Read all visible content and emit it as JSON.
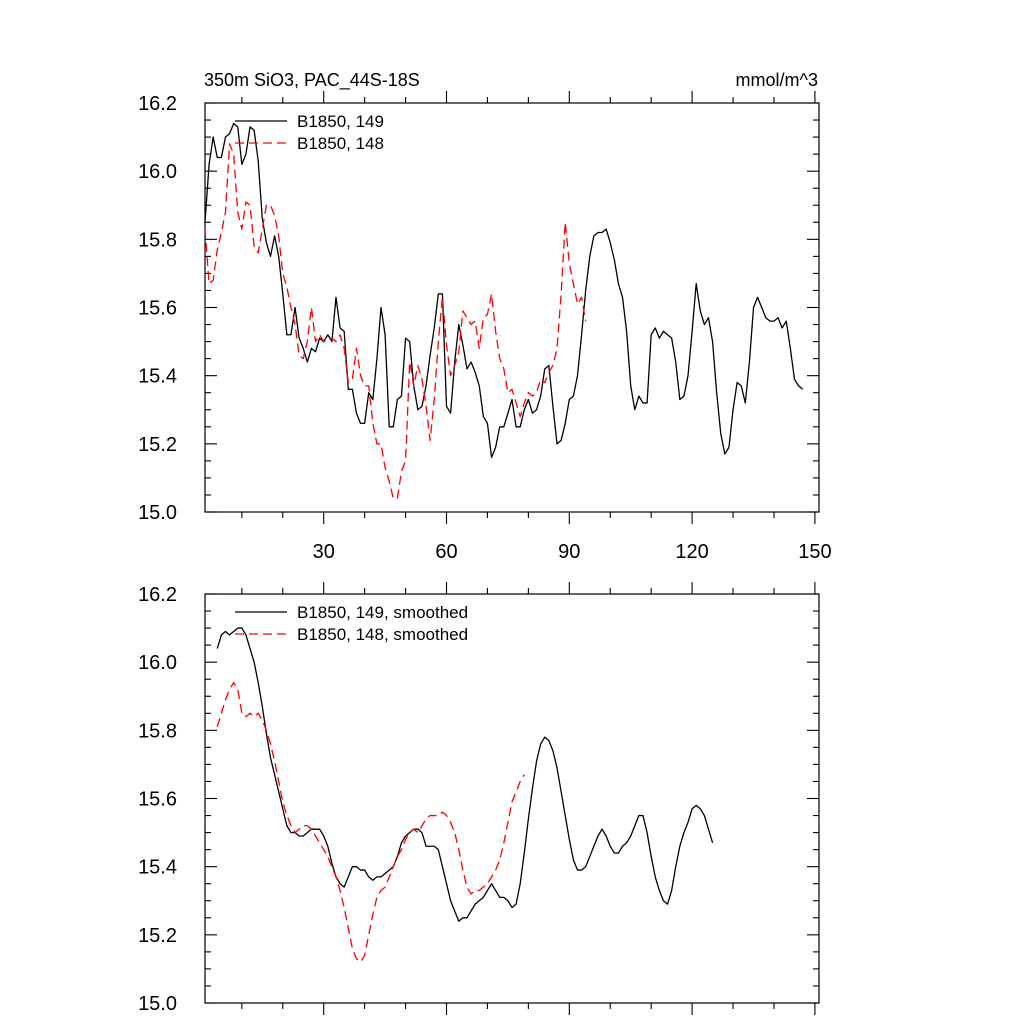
{
  "figure": {
    "title_left": "350m SiO3, PAC_44S-18S",
    "title_right": "mmol/m^3"
  },
  "chart_data": [
    {
      "type": "line",
      "xlim": [
        1,
        151
      ],
      "ylim": [
        15.0,
        16.2
      ],
      "x_ticks": [
        30,
        60,
        90,
        120,
        150
      ],
      "x_tick_labels": [
        "30",
        "60",
        "90",
        "120",
        "150"
      ],
      "y_ticks": [
        15.0,
        15.2,
        15.4,
        15.6,
        15.8,
        16.0,
        16.2
      ],
      "y_tick_labels": [
        "15.0",
        "15.2",
        "15.4",
        "15.6",
        "15.8",
        "16.0",
        "16.2"
      ],
      "legend_position": "top-left",
      "series": [
        {
          "name": "B1850, 149",
          "color": "#000000",
          "dash": "solid",
          "x_start": 1,
          "values": [
            15.85,
            16.02,
            16.1,
            16.04,
            16.04,
            16.1,
            16.11,
            16.14,
            16.13,
            16.02,
            16.05,
            16.13,
            16.12,
            16.03,
            15.86,
            15.79,
            15.75,
            15.81,
            15.75,
            15.64,
            15.52,
            15.52,
            15.6,
            15.51,
            15.48,
            15.44,
            15.48,
            15.47,
            15.51,
            15.5,
            15.52,
            15.5,
            15.63,
            15.54,
            15.53,
            15.36,
            15.36,
            15.29,
            15.26,
            15.26,
            15.35,
            15.33,
            15.45,
            15.6,
            15.52,
            15.25,
            15.25,
            15.33,
            15.34,
            15.51,
            15.5,
            15.37,
            15.3,
            15.31,
            15.37,
            15.46,
            15.54,
            15.64,
            15.64,
            15.31,
            15.29,
            15.44,
            15.55,
            15.49,
            15.42,
            15.44,
            15.41,
            15.37,
            15.28,
            15.26,
            15.16,
            15.19,
            15.25,
            15.25,
            15.29,
            15.33,
            15.25,
            15.25,
            15.3,
            15.33,
            15.29,
            15.3,
            15.34,
            15.42,
            15.43,
            15.31,
            15.2,
            15.21,
            15.26,
            15.33,
            15.34,
            15.4,
            15.52,
            15.65,
            15.75,
            15.81,
            15.82,
            15.82,
            15.83,
            15.79,
            15.74,
            15.67,
            15.63,
            15.53,
            15.37,
            15.3,
            15.34,
            15.32,
            15.32,
            15.52,
            15.54,
            15.51,
            15.53,
            15.52,
            15.51,
            15.44,
            15.33,
            15.34,
            15.4,
            15.53,
            15.67,
            15.59,
            15.55,
            15.57,
            15.5,
            15.35,
            15.23,
            15.17,
            15.19,
            15.3,
            15.38,
            15.37,
            15.32,
            15.44,
            15.6,
            15.63,
            15.6,
            15.57,
            15.56,
            15.56,
            15.57,
            15.54,
            15.56,
            15.48,
            15.39,
            15.37,
            15.36
          ]
        },
        {
          "name": "B1850, 148",
          "color": "#ff0000",
          "dash": "dashed",
          "x_start": 1,
          "values": [
            15.83,
            15.67,
            15.68,
            15.77,
            15.82,
            15.88,
            16.08,
            16.05,
            15.88,
            15.83,
            15.91,
            15.9,
            15.78,
            15.76,
            15.83,
            15.9,
            15.9,
            15.87,
            15.81,
            15.7,
            15.66,
            15.6,
            15.55,
            15.46,
            15.45,
            15.5,
            15.6,
            15.5,
            15.52,
            15.5,
            15.5,
            15.51,
            15.5,
            15.52,
            15.48,
            15.38,
            15.39,
            15.48,
            15.4,
            15.37,
            15.37,
            15.26,
            15.2,
            15.2,
            15.13,
            15.09,
            15.04,
            15.04,
            15.12,
            15.15,
            15.44,
            15.37,
            15.43,
            15.39,
            15.31,
            15.21,
            15.33,
            15.5,
            15.63,
            15.49,
            15.4,
            15.43,
            15.47,
            15.59,
            15.57,
            15.55,
            15.56,
            15.48,
            15.57,
            15.58,
            15.64,
            15.53,
            15.45,
            15.42,
            15.35,
            15.36,
            15.32,
            15.28,
            15.32,
            15.35,
            15.34,
            15.35,
            15.39,
            15.38,
            15.41,
            15.43,
            15.48,
            15.64,
            15.85,
            15.73,
            15.67,
            15.61,
            15.63,
            15.56
          ]
        }
      ]
    },
    {
      "type": "line",
      "xlim": [
        1,
        151
      ],
      "ylim": [
        15.0,
        16.2
      ],
      "y_ticks": [
        15.0,
        15.2,
        15.4,
        15.6,
        15.8,
        16.0,
        16.2
      ],
      "y_tick_labels": [
        "15.0",
        "15.2",
        "15.4",
        "15.6",
        "15.8",
        "16.0",
        "16.2"
      ],
      "legend_position": "top-left",
      "series": [
        {
          "name": "B1850, 149, smoothed",
          "color": "#000000",
          "dash": "solid",
          "x_start": 4,
          "values": [
            16.04,
            16.08,
            16.09,
            16.08,
            16.09,
            16.1,
            16.1,
            16.08,
            16.04,
            16.0,
            15.94,
            15.87,
            15.79,
            15.72,
            15.67,
            15.62,
            15.57,
            15.52,
            15.5,
            15.5,
            15.49,
            15.49,
            15.5,
            15.51,
            15.51,
            15.51,
            15.49,
            15.46,
            15.41,
            15.37,
            15.35,
            15.34,
            15.37,
            15.4,
            15.4,
            15.39,
            15.39,
            15.37,
            15.36,
            15.37,
            15.37,
            15.38,
            15.39,
            15.4,
            15.43,
            15.47,
            15.49,
            15.5,
            15.51,
            15.51,
            15.5,
            15.46,
            15.46,
            15.46,
            15.45,
            15.4,
            15.35,
            15.3,
            15.27,
            15.24,
            15.25,
            15.25,
            15.27,
            15.29,
            15.3,
            15.31,
            15.33,
            15.35,
            15.33,
            15.31,
            15.31,
            15.3,
            15.28,
            15.29,
            15.35,
            15.44,
            15.54,
            15.63,
            15.71,
            15.76,
            15.78,
            15.77,
            15.74,
            15.69,
            15.62,
            15.55,
            15.48,
            15.42,
            15.39,
            15.39,
            15.4,
            15.43,
            15.46,
            15.49,
            15.51,
            15.49,
            15.46,
            15.44,
            15.44,
            15.46,
            15.47,
            15.49,
            15.52,
            15.55,
            15.55,
            15.5,
            15.43,
            15.37,
            15.33,
            15.3,
            15.29,
            15.33,
            15.4,
            15.46,
            15.5,
            15.53,
            15.57,
            15.58,
            15.57,
            15.55,
            15.51,
            15.47
          ]
        },
        {
          "name": "B1850, 148, smoothed",
          "color": "#ff0000",
          "dash": "dashed",
          "x_start": 4,
          "values": [
            15.81,
            15.85,
            15.89,
            15.92,
            15.94,
            15.92,
            15.85,
            15.84,
            15.85,
            15.84,
            15.85,
            15.83,
            15.8,
            15.76,
            15.71,
            15.65,
            15.59,
            15.55,
            15.52,
            15.5,
            15.51,
            15.52,
            15.52,
            15.51,
            15.49,
            15.47,
            15.45,
            15.43,
            15.4,
            15.37,
            15.33,
            15.28,
            15.22,
            15.16,
            15.13,
            15.12,
            15.14,
            15.2,
            15.26,
            15.31,
            15.33,
            15.34,
            15.37,
            15.4,
            15.43,
            15.45,
            15.48,
            15.5,
            15.51,
            15.5,
            15.52,
            15.54,
            15.55,
            15.55,
            15.55,
            15.56,
            15.55,
            15.53,
            15.5,
            15.45,
            15.39,
            15.34,
            15.32,
            15.33,
            15.33,
            15.34,
            15.35,
            15.37,
            15.39,
            15.42,
            15.47,
            15.53,
            15.59,
            15.62,
            15.65,
            15.67
          ]
        }
      ]
    }
  ]
}
